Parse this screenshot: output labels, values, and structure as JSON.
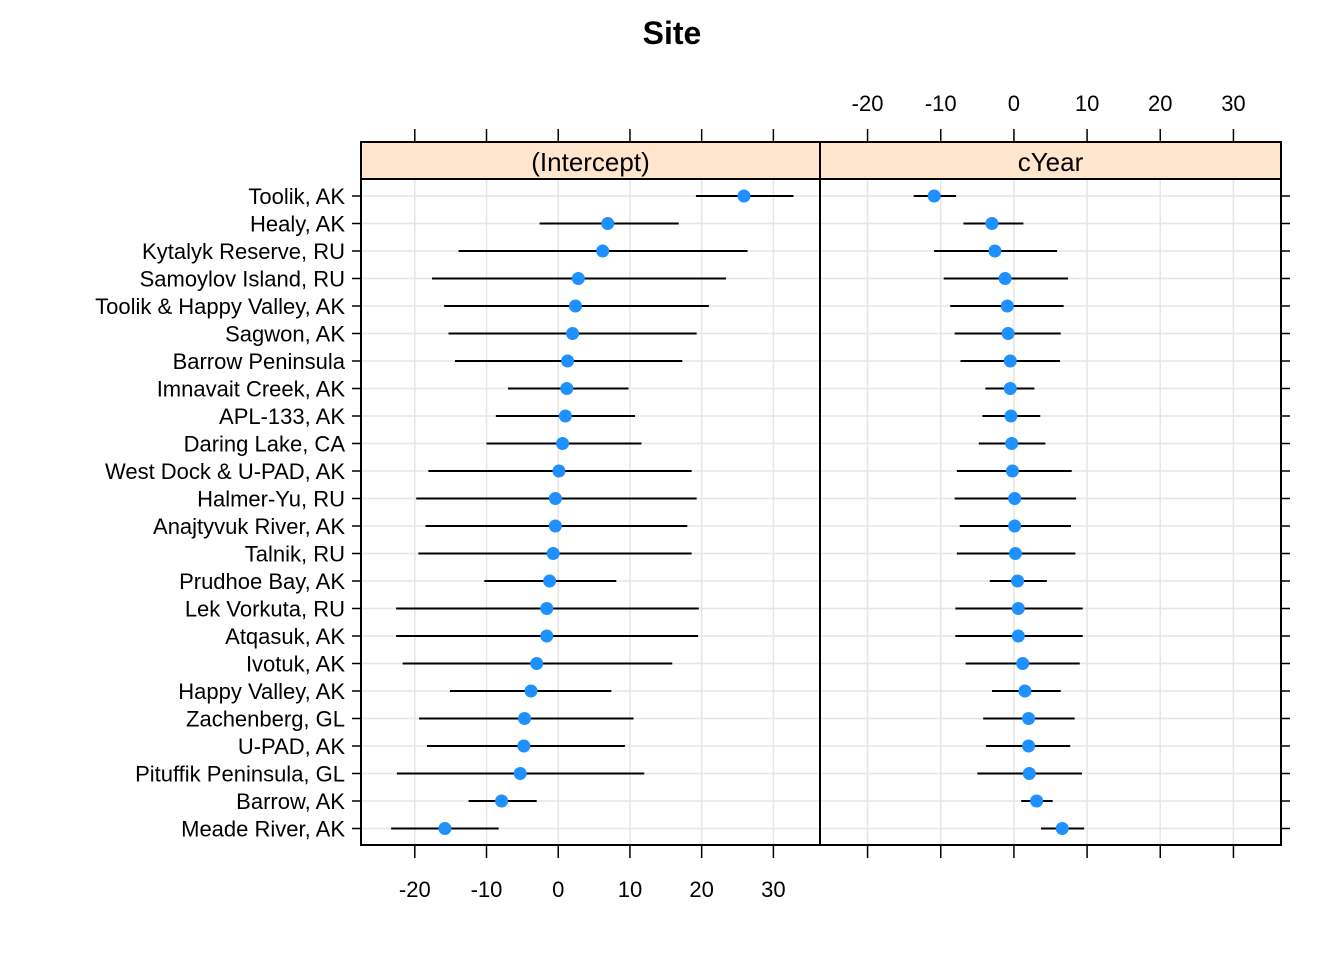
{
  "chart_data": {
    "type": "scatter",
    "title": "Site",
    "sites": [
      "Toolik, AK",
      "Healy, AK",
      "Kytalyk Reserve, RU",
      "Samoylov Island, RU",
      "Toolik & Happy Valley, AK",
      "Sagwon, AK",
      "Barrow Peninsula",
      "Imnavait Creek, AK",
      "APL-133, AK",
      "Daring Lake, CA",
      "West Dock & U-PAD, AK",
      "Halmer-Yu, RU",
      "Anajtyvuk River, AK",
      "Talnik, RU",
      "Prudhoe Bay, AK",
      "Lek Vorkuta, RU",
      "Atqasuk, AK",
      "Ivotuk, AK",
      "Happy Valley, AK",
      "Zachenberg, GL",
      "U-PAD, AK",
      "Pituffik Peninsula, GL",
      "Barrow, AK",
      "Meade River, AK"
    ],
    "panels": [
      {
        "name": "(Intercept)",
        "xlim": [
          -27.5,
          36.5
        ],
        "ticks": [
          -20,
          -10,
          0,
          10,
          20,
          30
        ],
        "tick_labels": [
          "-20",
          "-10",
          "0",
          "10",
          "20",
          "30"
        ],
        "estimates": [
          25.9,
          6.9,
          6.2,
          2.8,
          2.4,
          2.0,
          1.3,
          1.2,
          1.0,
          0.6,
          0.1,
          -0.4,
          -0.4,
          -0.7,
          -1.2,
          -1.6,
          -1.6,
          -3.0,
          -3.8,
          -4.7,
          -4.8,
          -5.3,
          -7.9,
          -15.8
        ],
        "lower": [
          19.2,
          -2.6,
          -13.9,
          -17.6,
          -15.9,
          -15.3,
          -14.4,
          -7.0,
          -8.7,
          -10.0,
          -18.1,
          -19.8,
          -18.5,
          -19.5,
          -10.3,
          -22.6,
          -22.6,
          -21.7,
          -15.1,
          -19.4,
          -18.3,
          -22.5,
          -12.5,
          -23.3
        ],
        "upper": [
          32.8,
          16.8,
          26.4,
          23.4,
          21.0,
          19.3,
          17.3,
          9.8,
          10.7,
          11.6,
          18.6,
          19.3,
          18.0,
          18.6,
          8.1,
          19.6,
          19.5,
          15.9,
          7.4,
          10.5,
          9.3,
          12.0,
          -3.0,
          -8.3
        ],
        "data_labels_on_top_axis": false
      },
      {
        "name": "cYear",
        "xlim": [
          -26.5,
          36.5
        ],
        "ticks": [
          -20,
          -10,
          0,
          10,
          20,
          30
        ],
        "tick_labels": [
          "-20",
          "-10",
          "0",
          "10",
          "20",
          "30"
        ],
        "estimates": [
          -10.9,
          -3.0,
          -2.6,
          -1.2,
          -0.9,
          -0.8,
          -0.5,
          -0.5,
          -0.4,
          -0.3,
          -0.2,
          0.1,
          0.1,
          0.2,
          0.5,
          0.6,
          0.6,
          1.2,
          1.5,
          2.0,
          2.0,
          2.1,
          3.1,
          6.6
        ],
        "lower": [
          -13.7,
          -6.9,
          -10.9,
          -9.6,
          -8.7,
          -8.1,
          -7.3,
          -3.9,
          -4.3,
          -4.8,
          -7.8,
          -8.1,
          -7.4,
          -7.8,
          -3.3,
          -8.0,
          -8.0,
          -6.6,
          -3.0,
          -4.2,
          -3.8,
          -5.0,
          1.0,
          3.7
        ],
        "upper": [
          -7.9,
          1.3,
          5.9,
          7.4,
          6.8,
          6.4,
          6.3,
          2.8,
          3.6,
          4.3,
          7.9,
          8.5,
          7.8,
          8.4,
          4.5,
          9.4,
          9.4,
          9.0,
          6.4,
          8.3,
          7.7,
          9.3,
          5.3,
          9.6
        ]
      }
    ],
    "grid": true,
    "legend": "none"
  },
  "colors": {
    "point": "#1e90ff",
    "strip": "#ffe5cc",
    "grid": "#e6e6e6",
    "line": "#000000"
  }
}
